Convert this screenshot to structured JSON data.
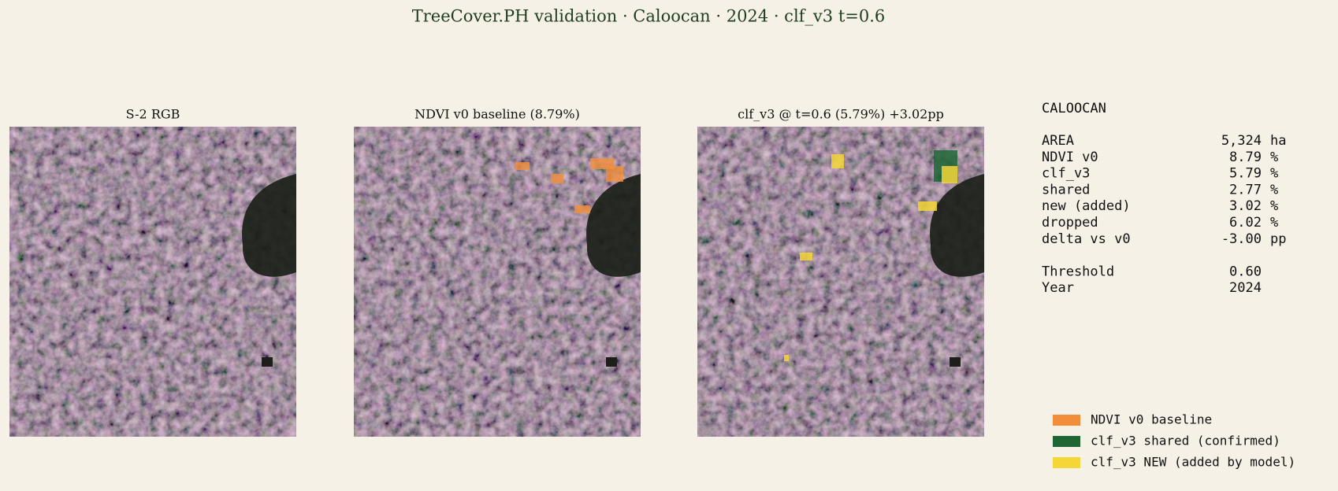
{
  "header": {
    "title": "TreeCover.PH validation · Caloocan · 2024 · clf_v3 t=0.6"
  },
  "panels": [
    {
      "title": "S-2 RGB"
    },
    {
      "title": "NDVI v0 baseline (8.79%)"
    },
    {
      "title": "clf_v3 @ t=0.6 (5.79%)  +3.02pp"
    }
  ],
  "stats": {
    "heading": "CALOOCAN",
    "rows": [
      {
        "label": "AREA",
        "value": "5,324",
        "unit": "ha"
      },
      {
        "label": "NDVI v0",
        "value": "8.79",
        "unit": "%"
      },
      {
        "label": "clf_v3",
        "value": "5.79",
        "unit": "%"
      },
      {
        "label": "shared",
        "value": "2.77",
        "unit": "%"
      },
      {
        "label": "new (added)",
        "value": "3.02",
        "unit": "%"
      },
      {
        "label": "dropped",
        "value": "6.02",
        "unit": "%"
      },
      {
        "label": "delta vs v0",
        "value": "-3.00",
        "unit": "pp"
      }
    ],
    "settings": [
      {
        "label": "Threshold",
        "value": "0.60"
      },
      {
        "label": "Year",
        "value": "2024"
      }
    ]
  },
  "legend": [
    {
      "label": "NDVI v0 baseline",
      "color": "#f28e3a"
    },
    {
      "label": "clf_v3 shared (confirmed)",
      "color": "#1f6635"
    },
    {
      "label": "clf_v3 NEW (added by model)",
      "color": "#f5d637"
    }
  ]
}
